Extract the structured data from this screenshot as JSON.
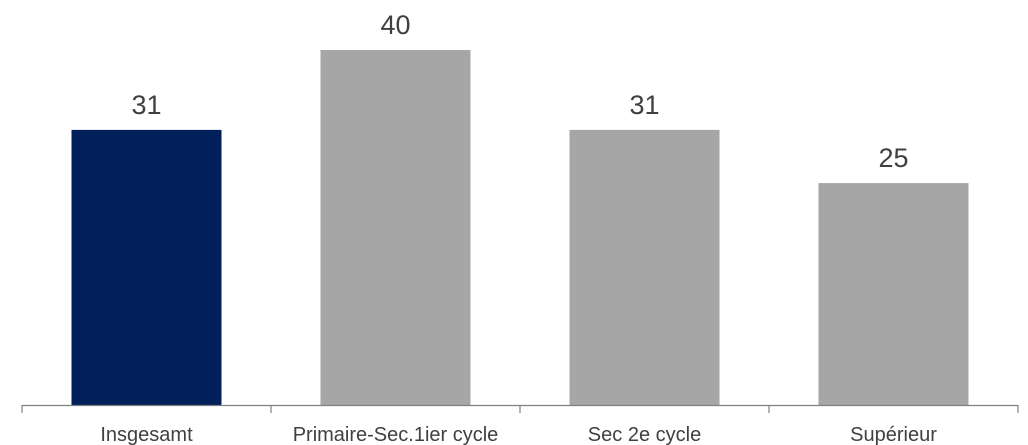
{
  "chart_data": {
    "type": "bar",
    "categories": [
      "Insgesamt",
      "Primaire-Sec.1ier cycle",
      "Sec 2e cycle",
      "Supérieur"
    ],
    "values": [
      31,
      40,
      31,
      25
    ],
    "data_labels": [
      "31",
      "40",
      "31",
      "25"
    ],
    "colors": [
      "#001f5b",
      "#a6a6a6",
      "#a6a6a6",
      "#a6a6a6"
    ],
    "title": "",
    "xlabel": "",
    "ylabel": "",
    "ylim": [
      0,
      40
    ],
    "grid": false,
    "legend": "none"
  },
  "colors": {
    "highlight_bar": "#001f5b",
    "default_bar": "#a6a6a6",
    "axis": "#808080",
    "text": "#404040"
  }
}
